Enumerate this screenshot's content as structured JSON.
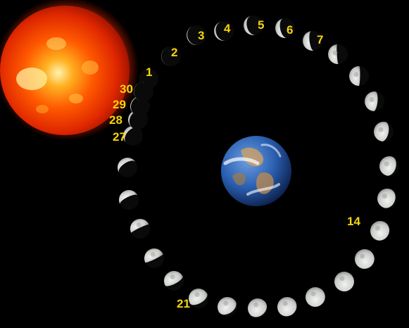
{
  "phase_labels": {
    "d1": "1",
    "d2": "2",
    "d3": "3",
    "d4": "4",
    "d5": "5",
    "d6": "6",
    "d7": "7",
    "d14": "14",
    "d21": "21",
    "d27": "27",
    "d28": "28",
    "d29": "29",
    "d30": "30"
  },
  "colors": {
    "background": "#000000",
    "label": "#f5d40a",
    "sun_core": "#ffe27a",
    "sun_edge": "#c81400",
    "earth_ocean": "#2a5fb0",
    "moon_lit": "#d7d9d6"
  },
  "objects": {
    "sun": "sun",
    "earth": "earth",
    "moon_orbit": "moon-orbit"
  }
}
